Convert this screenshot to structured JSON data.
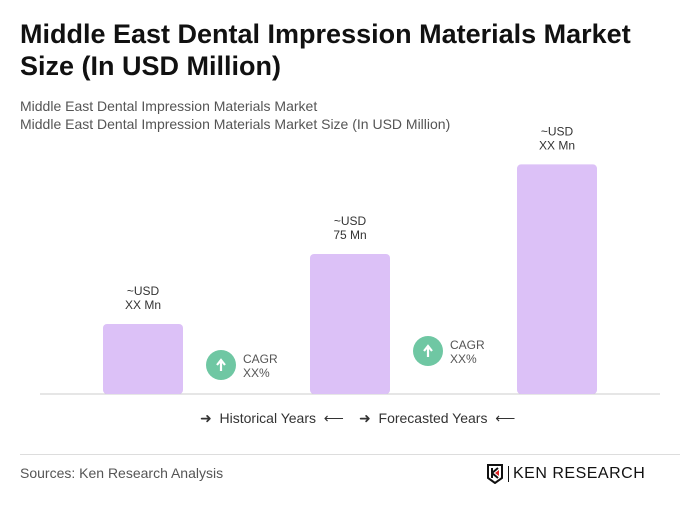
{
  "title": "Middle East Dental Impression Materials Market Size (In USD Million)",
  "subtitle1": "Middle East Dental Impression Materials Market",
  "subtitle2": "Middle East Dental Impression Materials Market Size (In USD Million)",
  "chart_data": {
    "type": "bar",
    "categories": [
      "",
      "",
      ""
    ],
    "values": [
      37.5,
      75,
      123
    ],
    "data_labels": [
      [
        "~USD",
        "XX Mn"
      ],
      [
        "~USD",
        "75 Mn"
      ],
      [
        "~USD",
        "XX Mn"
      ]
    ],
    "bar_color": "#dcc1f7",
    "annotations": [
      {
        "text1": "CAGR",
        "text2": "XX%",
        "icon": "arrow-up-circle-icon",
        "color": "#6fc7a3"
      },
      {
        "text1": "CAGR",
        "text2": "XX%",
        "icon": "arrow-up-circle-icon",
        "color": "#6fc7a3"
      }
    ],
    "grid": false
  },
  "legend": {
    "historical": "Historical Years",
    "forecasted": "Forecasted Years"
  },
  "sources": "Sources: Ken Research Analysis",
  "logo": "KEN RESEARCH"
}
